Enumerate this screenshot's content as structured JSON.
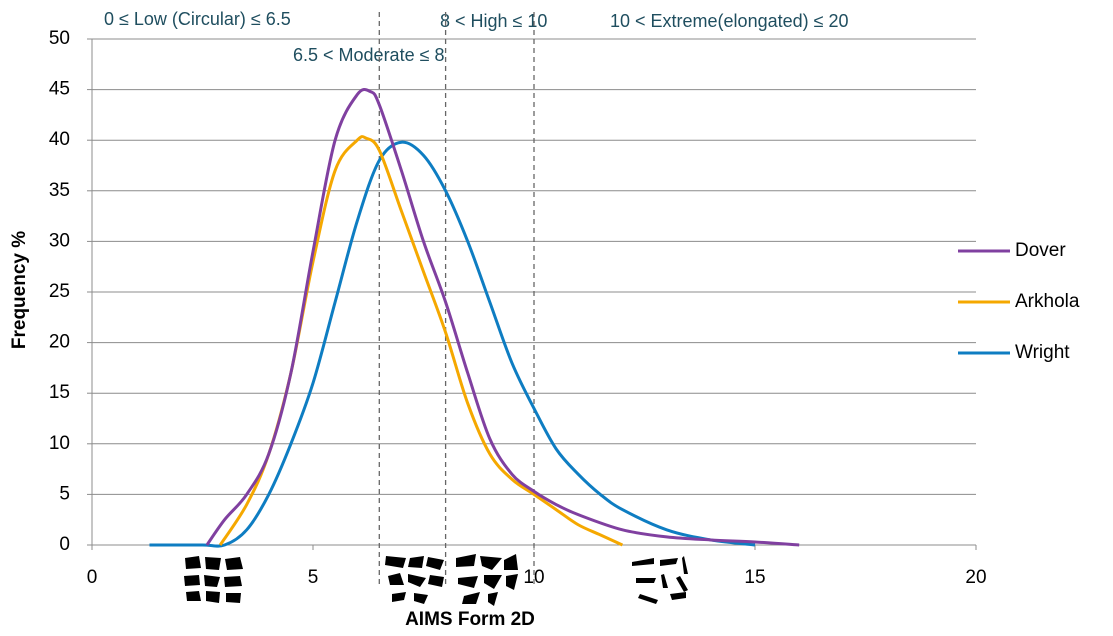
{
  "chart_data": {
    "type": "line",
    "annotations": [
      "0 ≤ Low (Circular) ≤ 6.5",
      "6.5 < Moderate ≤ 8",
      "8 < High ≤ 10",
      "10 < Extreme(elongated) ≤ 20"
    ],
    "thresholds": [
      6.5,
      8,
      10
    ],
    "x_label": "AIMS Form 2D",
    "y_label": "Frequency %",
    "xlim": [
      0,
      20
    ],
    "xticks": [
      0,
      5,
      10,
      15,
      20
    ],
    "ylim": [
      0,
      50
    ],
    "yticks": [
      0,
      5,
      10,
      15,
      20,
      25,
      30,
      35,
      40,
      45,
      50
    ],
    "grid": true,
    "legend": "right",
    "series": [
      {
        "name": "Dover",
        "color": "#8040a0",
        "x": [
          2.6,
          3,
          3.5,
          4,
          4.5,
          5,
          5.5,
          6,
          6.3,
          6.5,
          7,
          7.5,
          8,
          8.5,
          9,
          9.5,
          10,
          10.5,
          11,
          12,
          13,
          14,
          15,
          16
        ],
        "values": [
          0,
          2.5,
          5,
          9,
          17,
          29,
          40,
          44.5,
          44.8,
          43.5,
          37,
          30,
          24,
          17,
          10.5,
          7,
          5.3,
          4,
          3,
          1.5,
          0.8,
          0.5,
          0.3,
          0
        ]
      },
      {
        "name": "Arkhola",
        "color": "#f5a800",
        "x": [
          2.9,
          3.5,
          4,
          4.5,
          5,
          5.5,
          6,
          6.2,
          6.5,
          7,
          7.5,
          8,
          8.5,
          9,
          9.5,
          10,
          10.5,
          11,
          11.5,
          12
        ],
        "values": [
          0,
          4,
          9,
          17,
          28,
          37,
          40,
          40.2,
          39,
          33,
          27,
          21,
          14,
          9,
          6.5,
          5,
          3.5,
          2,
          1,
          0
        ]
      },
      {
        "name": "Wright",
        "color": "#0e7dc2",
        "x": [
          1.3,
          1.6,
          2.5,
          3,
          3.5,
          4,
          4.5,
          5,
          5.5,
          6,
          6.5,
          7,
          7.5,
          8,
          8.5,
          9,
          9.5,
          10,
          10.5,
          11,
          11.5,
          12,
          13,
          14,
          15
        ],
        "values": [
          0,
          0,
          0,
          0,
          1.5,
          5,
          10,
          16,
          24,
          32,
          38,
          39.8,
          38.5,
          35,
          30,
          24,
          18,
          13.5,
          9.5,
          7,
          5,
          3.5,
          1.5,
          0.5,
          0
        ]
      }
    ]
  }
}
